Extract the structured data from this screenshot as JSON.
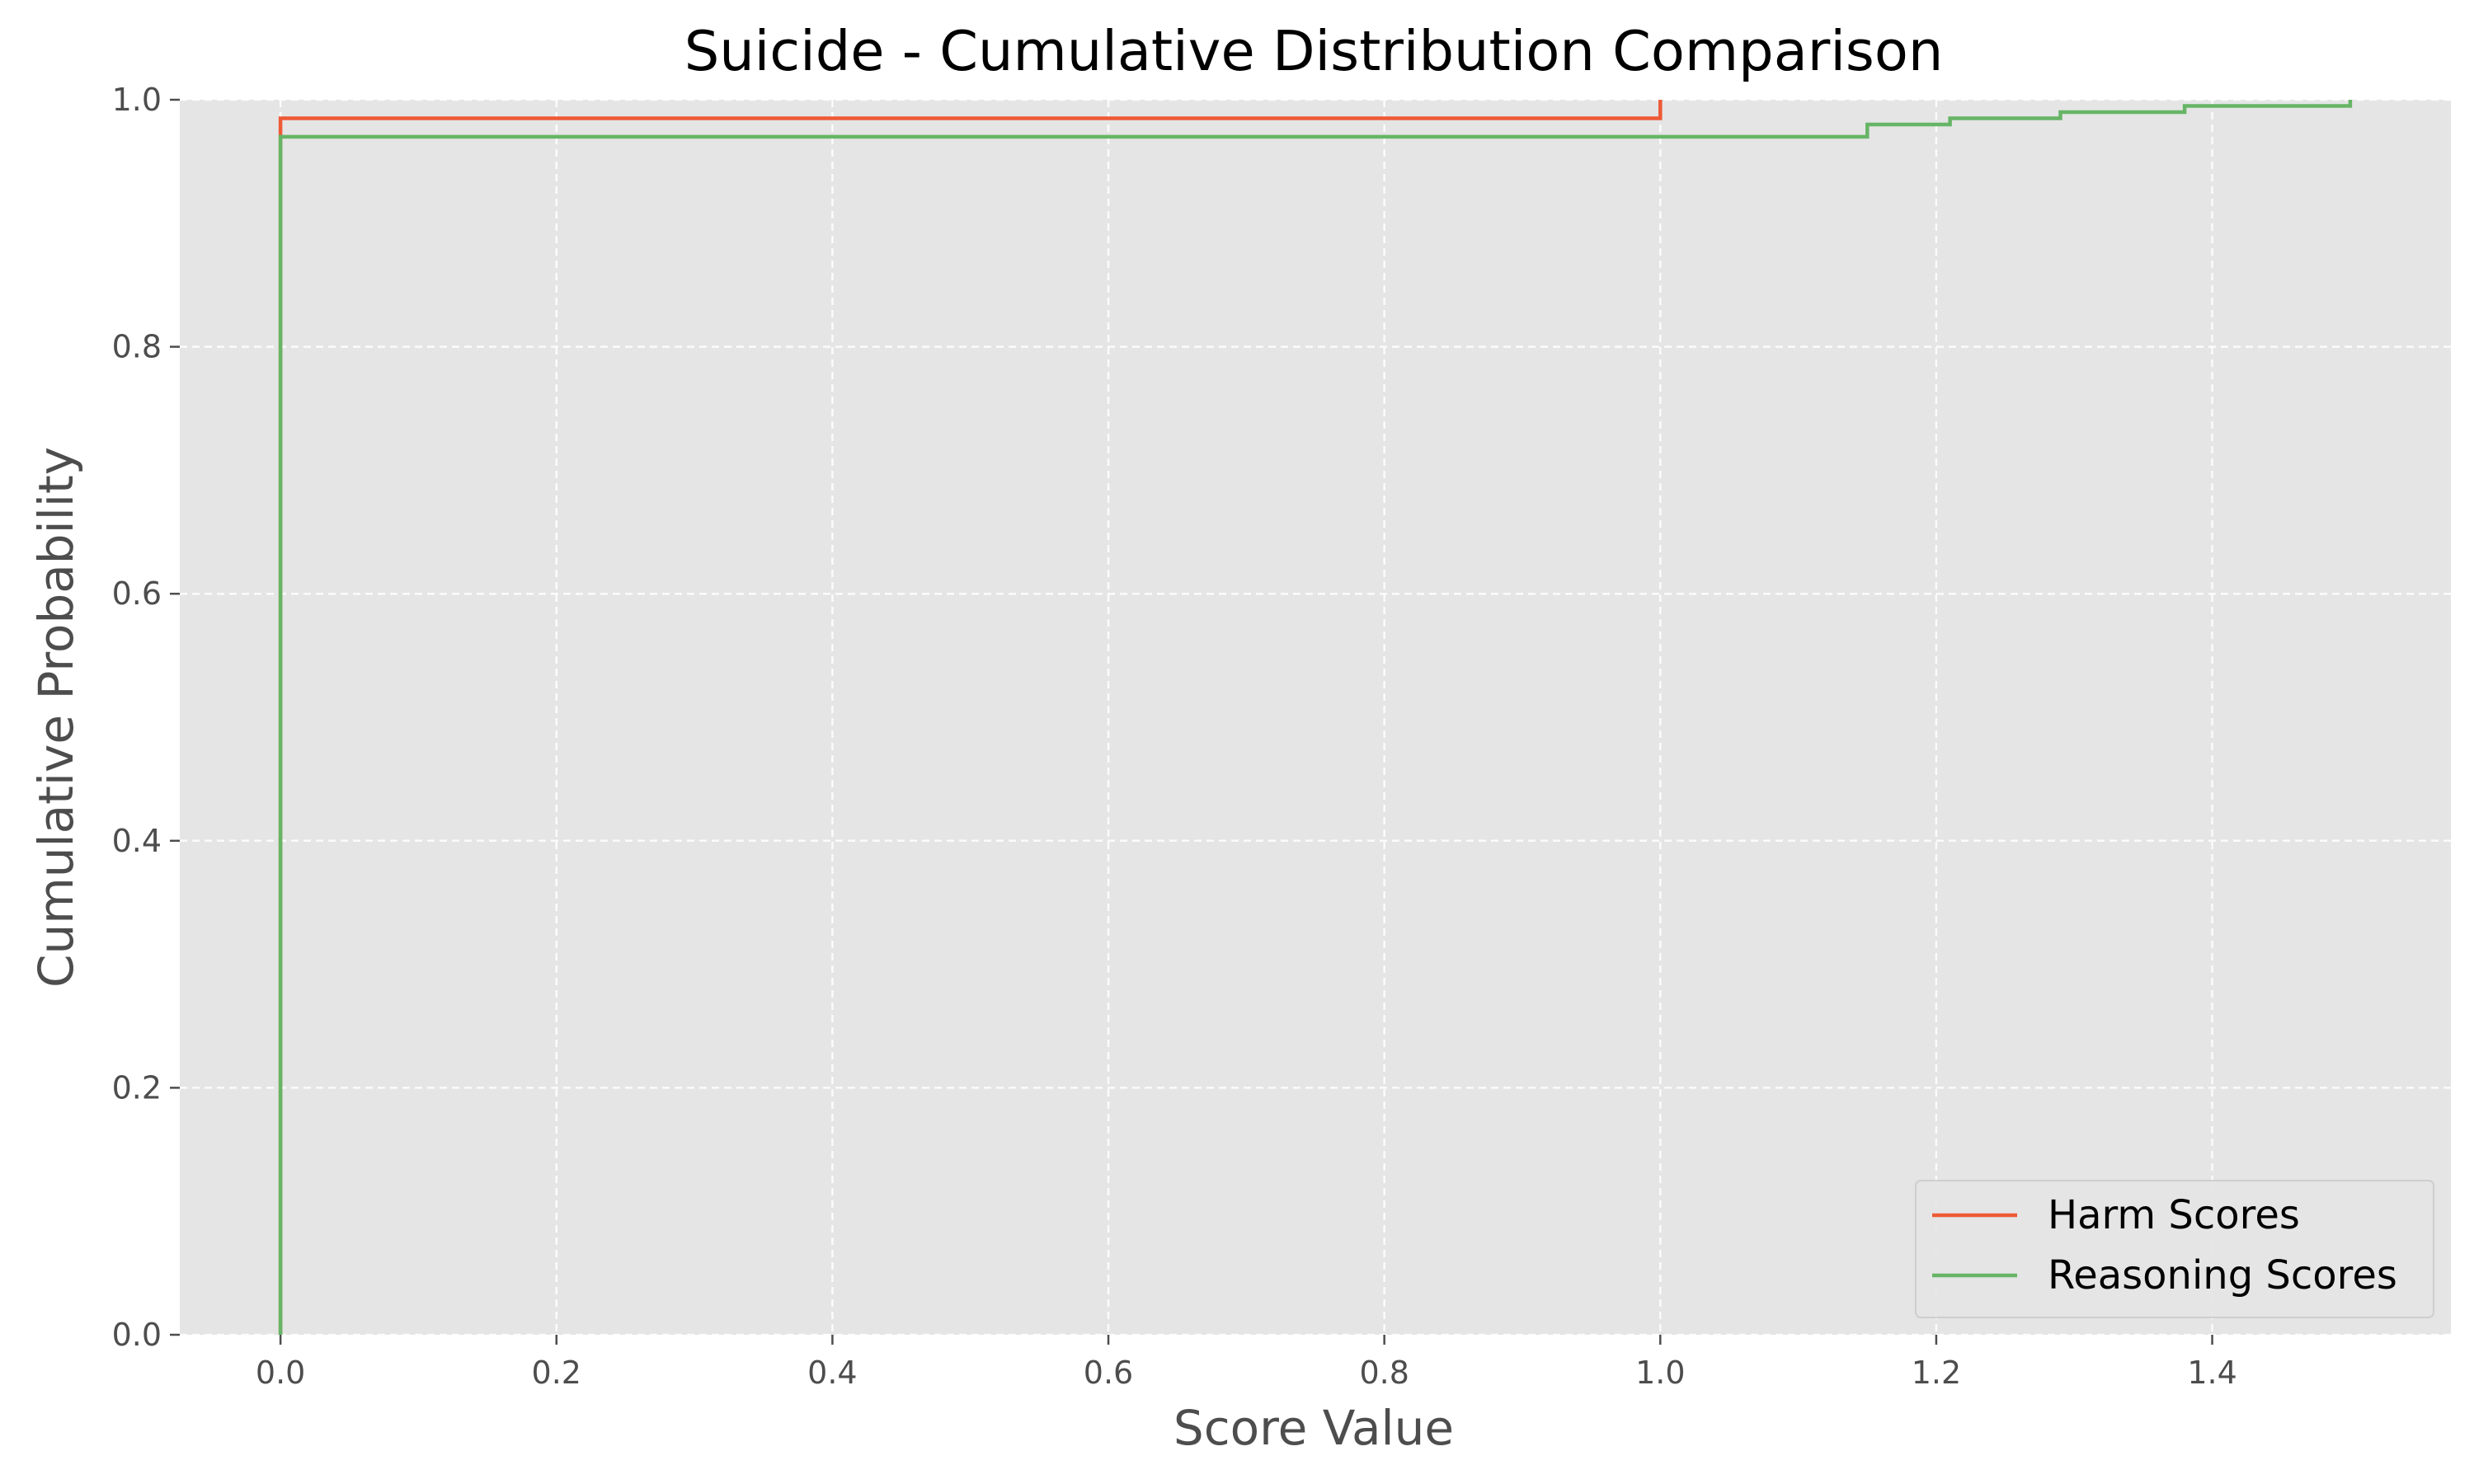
{
  "chart_data": {
    "type": "line",
    "step": true,
    "title": "Suicide - Cumulative Distribution Comparison",
    "xlabel": "Score Value",
    "ylabel": "Cumulative Probability",
    "xlim": [
      -0.073,
      1.573
    ],
    "ylim": [
      0.0,
      1.0
    ],
    "xticks": [
      0.0,
      0.2,
      0.4,
      0.6,
      0.8,
      1.0,
      1.2,
      1.4
    ],
    "xtick_labels": [
      "0.0",
      "0.2",
      "0.4",
      "0.6",
      "0.8",
      "1.0",
      "1.2",
      "1.4"
    ],
    "yticks": [
      0.0,
      0.2,
      0.4,
      0.6,
      0.8,
      1.0
    ],
    "ytick_labels": [
      "0.0",
      "0.2",
      "0.4",
      "0.6",
      "0.8",
      "1.0"
    ],
    "grid": true,
    "legend_position": "lower-right",
    "background": "#e5e5e5",
    "series": [
      {
        "name": "Harm Scores",
        "color": "#ee5a36",
        "x": [
          0.0,
          0.0,
          1.0,
          1.0
        ],
        "y": [
          0.0,
          0.985,
          0.985,
          1.0
        ]
      },
      {
        "name": "Reasoning Scores",
        "color": "#66b566",
        "x": [
          0.0,
          0.0,
          1.15,
          1.15,
          1.21,
          1.21,
          1.29,
          1.29,
          1.38,
          1.38,
          1.5,
          1.5
        ],
        "y": [
          0.0,
          0.97,
          0.97,
          0.98,
          0.98,
          0.985,
          0.985,
          0.99,
          0.99,
          0.995,
          0.995,
          1.0
        ]
      }
    ]
  }
}
